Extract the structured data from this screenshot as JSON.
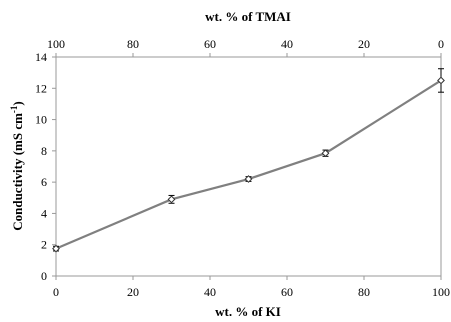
{
  "chart_data": {
    "type": "line",
    "xlabel": "wt. % of KI",
    "x2label": "wt. % of TMAI",
    "ylabel_main": "Conductivity (mS cm",
    "ylabel_sup": "-1",
    "ylabel_end": ")",
    "xlim": [
      0,
      100
    ],
    "ylim": [
      0,
      14
    ],
    "x2lim": [
      100,
      0
    ],
    "xticks": [
      0,
      20,
      40,
      60,
      80,
      100
    ],
    "yticks": [
      0,
      2,
      4,
      6,
      8,
      10,
      12,
      14
    ],
    "x2ticks": [
      100,
      80,
      60,
      40,
      20,
      0
    ],
    "grid": false,
    "series": [
      {
        "x": [
          0,
          30,
          50,
          70,
          100
        ],
        "y": [
          1.75,
          4.9,
          6.2,
          7.85,
          12.5
        ],
        "err": [
          0.15,
          0.25,
          0.15,
          0.2,
          0.75
        ],
        "line_color": "#808080",
        "marker": "diamond"
      }
    ]
  }
}
